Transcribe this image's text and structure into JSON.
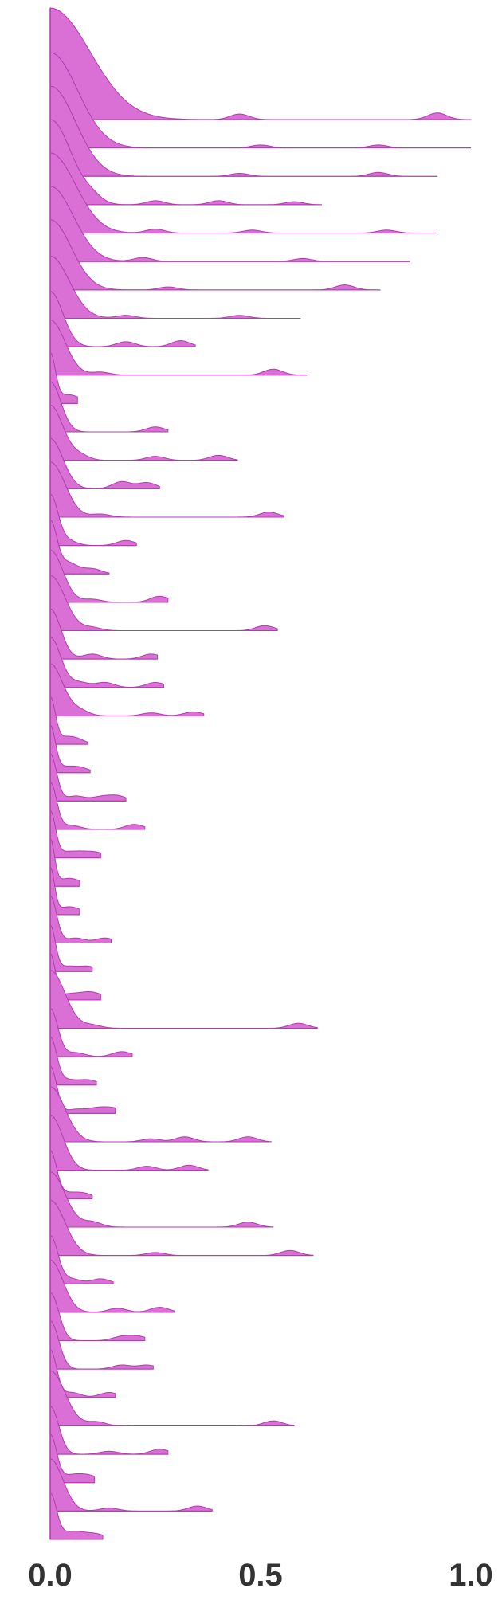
{
  "chart_data": {
    "type": "area",
    "subtype": "ridgeline",
    "title": "",
    "xlabel": "",
    "ylabel": "",
    "xlim": [
      0.0,
      1.0
    ],
    "x_ticks": [
      "0.0",
      "0.5",
      "1.0"
    ],
    "grid": false,
    "legend": "none",
    "fill_color": "#da70d6",
    "stroke_color": "#b03cae",
    "ridges": [
      {
        "peak": 1.0,
        "spread": 0.095,
        "extent": 1.0,
        "wiggles": [
          [
            0.45,
            0.05
          ],
          [
            0.92,
            0.06
          ]
        ]
      },
      {
        "peak": 0.95,
        "spread": 0.065,
        "extent": 1.0,
        "wiggles": [
          [
            0.5,
            0.03
          ],
          [
            0.78,
            0.03
          ]
        ]
      },
      {
        "peak": 0.9,
        "spread": 0.06,
        "extent": 0.92,
        "wiggles": [
          [
            0.45,
            0.03
          ],
          [
            0.78,
            0.04
          ]
        ]
      },
      {
        "peak": 0.85,
        "spread": 0.05,
        "extent": 0.645,
        "wiggles": [
          [
            0.1,
            0.05
          ],
          [
            0.25,
            0.04
          ],
          [
            0.4,
            0.04
          ],
          [
            0.58,
            0.03
          ]
        ]
      },
      {
        "peak": 0.8,
        "spread": 0.06,
        "extent": 0.92,
        "wiggles": [
          [
            0.25,
            0.04
          ],
          [
            0.48,
            0.03
          ],
          [
            0.8,
            0.03
          ]
        ]
      },
      {
        "peak": 0.75,
        "spread": 0.055,
        "extent": 0.855,
        "wiggles": [
          [
            0.22,
            0.04
          ],
          [
            0.6,
            0.03
          ]
        ]
      },
      {
        "peak": 0.7,
        "spread": 0.05,
        "extent": 0.785,
        "wiggles": [
          [
            0.28,
            0.03
          ],
          [
            0.7,
            0.05
          ]
        ]
      },
      {
        "peak": 0.62,
        "spread": 0.045,
        "extent": 0.595,
        "wiggles": [
          [
            0.18,
            0.03
          ],
          [
            0.45,
            0.03
          ]
        ]
      },
      {
        "peak": 0.55,
        "spread": 0.03,
        "extent": 0.345,
        "wiggles": [
          [
            0.18,
            0.05
          ],
          [
            0.31,
            0.06
          ]
        ]
      },
      {
        "peak": 0.55,
        "spread": 0.035,
        "extent": 0.61,
        "wiggles": [
          [
            0.12,
            0.03
          ],
          [
            0.53,
            0.06
          ]
        ]
      },
      {
        "peak": 0.48,
        "spread": 0.012,
        "extent": 0.065,
        "wiggles": [
          [
            0.03,
            0.06
          ],
          [
            0.06,
            0.05
          ]
        ]
      },
      {
        "peak": 0.5,
        "spread": 0.025,
        "extent": 0.28,
        "wiggles": [
          [
            0.25,
            0.05
          ]
        ]
      },
      {
        "peak": 0.55,
        "spread": 0.03,
        "extent": 0.445,
        "wiggles": [
          [
            0.07,
            0.05
          ],
          [
            0.25,
            0.04
          ],
          [
            0.4,
            0.05
          ]
        ]
      },
      {
        "peak": 0.5,
        "spread": 0.03,
        "extent": 0.26,
        "wiggles": [
          [
            0.17,
            0.07
          ],
          [
            0.23,
            0.06
          ]
        ]
      },
      {
        "peak": 0.55,
        "spread": 0.035,
        "extent": 0.555,
        "wiggles": [
          [
            0.12,
            0.03
          ],
          [
            0.52,
            0.05
          ]
        ]
      },
      {
        "peak": 0.5,
        "spread": 0.018,
        "extent": 0.205,
        "wiggles": [
          [
            0.04,
            0.05
          ],
          [
            0.18,
            0.05
          ]
        ]
      },
      {
        "peak": 0.5,
        "spread": 0.015,
        "extent": 0.14,
        "wiggles": [
          [
            0.03,
            0.07
          ],
          [
            0.05,
            0.06
          ],
          [
            0.1,
            0.05
          ]
        ]
      },
      {
        "peak": 0.52,
        "spread": 0.03,
        "extent": 0.28,
        "wiggles": [
          [
            0.1,
            0.03
          ],
          [
            0.26,
            0.06
          ]
        ]
      },
      {
        "peak": 0.55,
        "spread": 0.035,
        "extent": 0.54,
        "wiggles": [
          [
            0.1,
            0.03
          ],
          [
            0.51,
            0.05
          ]
        ]
      },
      {
        "peak": 0.5,
        "spread": 0.025,
        "extent": 0.255,
        "wiggles": [
          [
            0.1,
            0.05
          ],
          [
            0.24,
            0.05
          ]
        ]
      },
      {
        "peak": 0.5,
        "spread": 0.025,
        "extent": 0.27,
        "wiggles": [
          [
            0.07,
            0.05
          ],
          [
            0.13,
            0.05
          ],
          [
            0.25,
            0.05
          ]
        ]
      },
      {
        "peak": 0.52,
        "spread": 0.03,
        "extent": 0.365,
        "wiggles": [
          [
            0.07,
            0.05
          ],
          [
            0.24,
            0.03
          ],
          [
            0.34,
            0.04
          ]
        ]
      },
      {
        "peak": 0.45,
        "spread": 0.012,
        "extent": 0.09,
        "wiggles": [
          [
            0.03,
            0.05
          ],
          [
            0.06,
            0.05
          ]
        ]
      },
      {
        "peak": 0.45,
        "spread": 0.012,
        "extent": 0.095,
        "wiggles": [
          [
            0.03,
            0.05
          ],
          [
            0.07,
            0.05
          ]
        ]
      },
      {
        "peak": 0.47,
        "spread": 0.015,
        "extent": 0.18,
        "wiggles": [
          [
            0.06,
            0.05
          ],
          [
            0.12,
            0.04
          ],
          [
            0.16,
            0.05
          ]
        ]
      },
      {
        "peak": 0.47,
        "spread": 0.015,
        "extent": 0.225,
        "wiggles": [
          [
            0.05,
            0.04
          ],
          [
            0.2,
            0.05
          ]
        ]
      },
      {
        "peak": 0.45,
        "spread": 0.012,
        "extent": 0.12,
        "wiggles": [
          [
            0.03,
            0.05
          ],
          [
            0.07,
            0.05
          ],
          [
            0.11,
            0.05
          ]
        ]
      },
      {
        "peak": 0.45,
        "spread": 0.01,
        "extent": 0.07,
        "wiggles": [
          [
            0.03,
            0.05
          ],
          [
            0.06,
            0.05
          ]
        ]
      },
      {
        "peak": 0.45,
        "spread": 0.01,
        "extent": 0.07,
        "wiggles": [
          [
            0.03,
            0.05
          ],
          [
            0.06,
            0.05
          ]
        ]
      },
      {
        "peak": 0.47,
        "spread": 0.015,
        "extent": 0.145,
        "wiggles": [
          [
            0.06,
            0.05
          ],
          [
            0.13,
            0.05
          ]
        ]
      },
      {
        "peak": 0.45,
        "spread": 0.012,
        "extent": 0.1,
        "wiggles": [
          [
            0.04,
            0.05
          ],
          [
            0.09,
            0.05
          ]
        ]
      },
      {
        "peak": 0.45,
        "spread": 0.012,
        "extent": 0.12,
        "wiggles": [
          [
            0.04,
            0.05
          ],
          [
            0.08,
            0.05
          ],
          [
            0.11,
            0.05
          ]
        ]
      },
      {
        "peak": 0.58,
        "spread": 0.035,
        "extent": 0.635,
        "wiggles": [
          [
            0.1,
            0.03
          ],
          [
            0.59,
            0.05
          ]
        ]
      },
      {
        "peak": 0.48,
        "spread": 0.018,
        "extent": 0.195,
        "wiggles": [
          [
            0.06,
            0.04
          ],
          [
            0.17,
            0.05
          ]
        ]
      },
      {
        "peak": 0.47,
        "spread": 0.015,
        "extent": 0.11,
        "wiggles": [
          [
            0.04,
            0.05
          ],
          [
            0.09,
            0.05
          ]
        ]
      },
      {
        "peak": 0.47,
        "spread": 0.015,
        "extent": 0.155,
        "wiggles": [
          [
            0.06,
            0.04
          ],
          [
            0.11,
            0.05
          ],
          [
            0.15,
            0.05
          ]
        ]
      },
      {
        "peak": 0.55,
        "spread": 0.035,
        "extent": 0.525,
        "wiggles": [
          [
            0.24,
            0.03
          ],
          [
            0.32,
            0.05
          ],
          [
            0.47,
            0.05
          ]
        ]
      },
      {
        "peak": 0.55,
        "spread": 0.03,
        "extent": 0.375,
        "wiggles": [
          [
            0.23,
            0.04
          ],
          [
            0.33,
            0.05
          ]
        ]
      },
      {
        "peak": 0.47,
        "spread": 0.015,
        "extent": 0.1,
        "wiggles": [
          [
            0.04,
            0.05
          ],
          [
            0.08,
            0.05
          ]
        ]
      },
      {
        "peak": 0.55,
        "spread": 0.035,
        "extent": 0.53,
        "wiggles": [
          [
            0.1,
            0.05
          ],
          [
            0.47,
            0.05
          ]
        ]
      },
      {
        "peak": 0.55,
        "spread": 0.035,
        "extent": 0.625,
        "wiggles": [
          [
            0.25,
            0.03
          ],
          [
            0.57,
            0.05
          ]
        ]
      },
      {
        "peak": 0.48,
        "spread": 0.018,
        "extent": 0.15,
        "wiggles": [
          [
            0.05,
            0.05
          ],
          [
            0.12,
            0.05
          ]
        ]
      },
      {
        "peak": 0.52,
        "spread": 0.03,
        "extent": 0.295,
        "wiggles": [
          [
            0.16,
            0.04
          ],
          [
            0.26,
            0.05
          ]
        ]
      },
      {
        "peak": 0.48,
        "spread": 0.02,
        "extent": 0.225,
        "wiggles": [
          [
            0.17,
            0.04
          ],
          [
            0.21,
            0.04
          ]
        ]
      },
      {
        "peak": 0.48,
        "spread": 0.02,
        "extent": 0.245,
        "wiggles": [
          [
            0.17,
            0.04
          ],
          [
            0.23,
            0.04
          ]
        ]
      },
      {
        "peak": 0.47,
        "spread": 0.015,
        "extent": 0.155,
        "wiggles": [
          [
            0.05,
            0.05
          ],
          [
            0.14,
            0.05
          ]
        ]
      },
      {
        "peak": 0.55,
        "spread": 0.035,
        "extent": 0.58,
        "wiggles": [
          [
            0.11,
            0.04
          ],
          [
            0.53,
            0.05
          ]
        ]
      },
      {
        "peak": 0.48,
        "spread": 0.02,
        "extent": 0.28,
        "wiggles": [
          [
            0.14,
            0.03
          ],
          [
            0.26,
            0.05
          ]
        ]
      },
      {
        "peak": 0.47,
        "spread": 0.015,
        "extent": 0.105,
        "wiggles": [
          [
            0.04,
            0.05
          ],
          [
            0.07,
            0.05
          ],
          [
            0.1,
            0.05
          ]
        ]
      },
      {
        "peak": 0.52,
        "spread": 0.03,
        "extent": 0.385,
        "wiggles": [
          [
            0.14,
            0.03
          ],
          [
            0.35,
            0.05
          ]
        ]
      },
      {
        "peak": 0.45,
        "spread": 0.015,
        "extent": 0.125,
        "wiggles": [
          [
            0.04,
            0.05
          ],
          [
            0.07,
            0.05
          ],
          [
            0.11,
            0.05
          ]
        ]
      }
    ]
  }
}
